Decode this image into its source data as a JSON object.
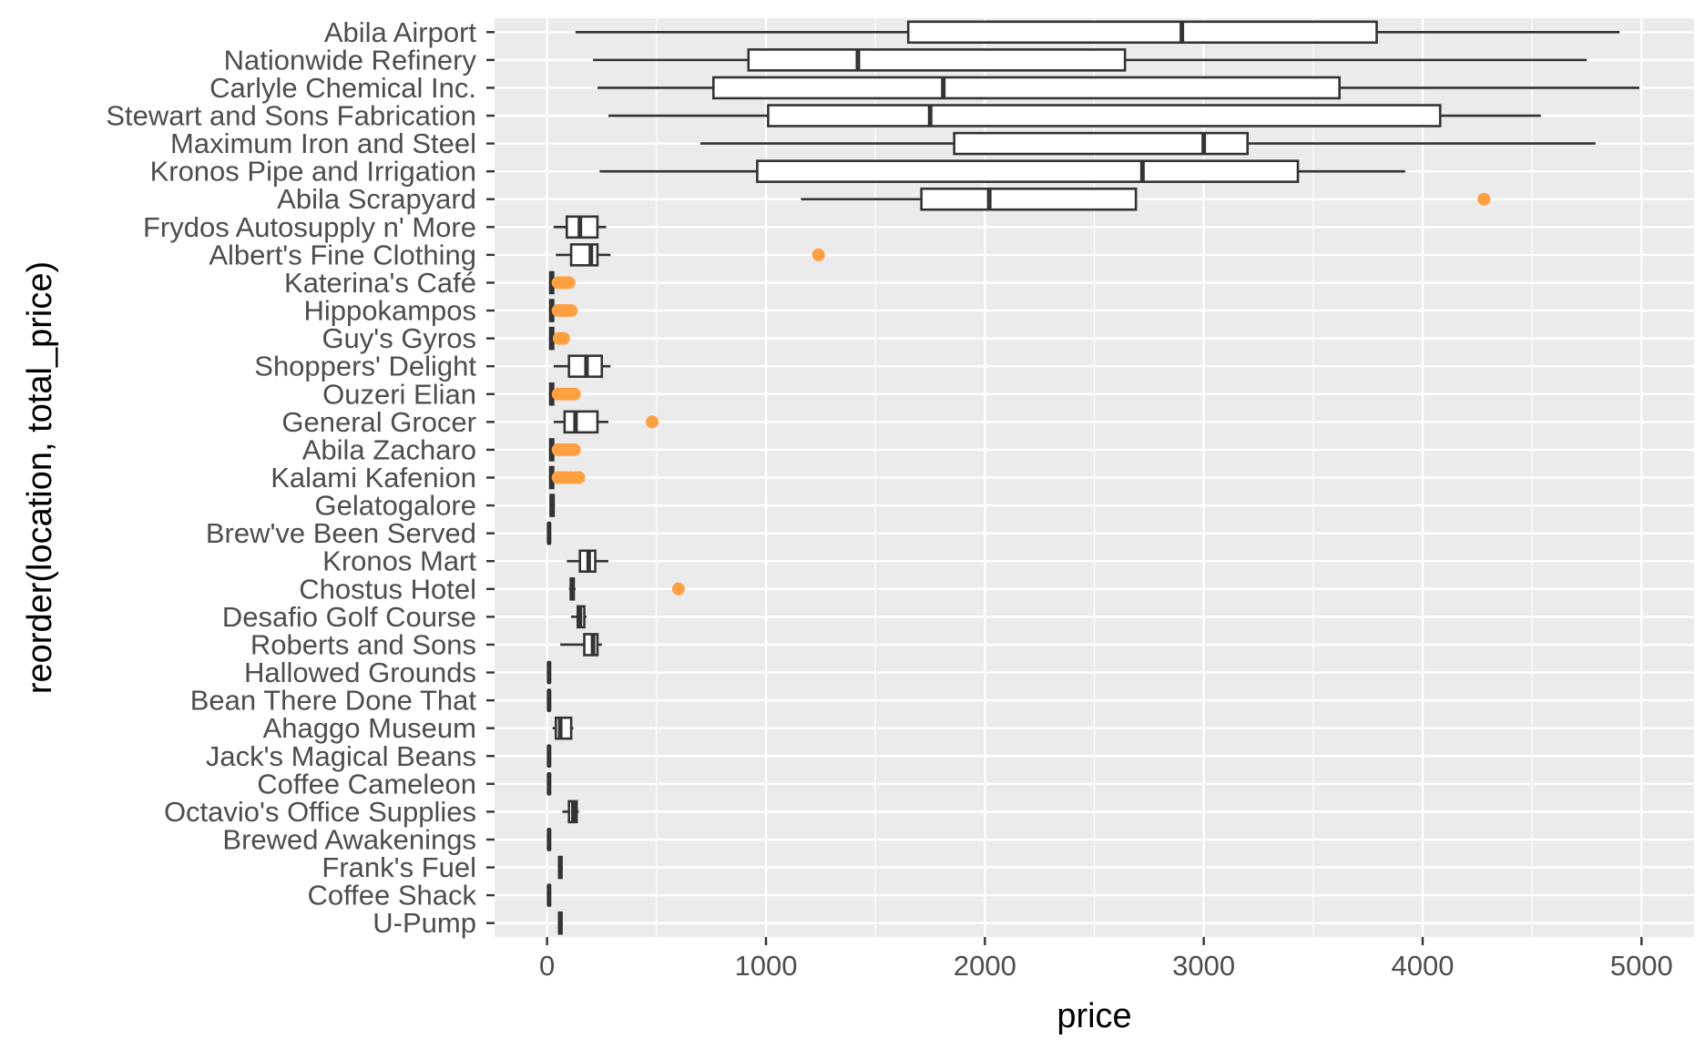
{
  "chart_data": {
    "type": "boxplot",
    "orientation": "horizontal",
    "xlabel": "price",
    "ylabel": "reorder(location, total_price)",
    "xlim": [
      -240,
      5240
    ],
    "xticks": [
      0,
      1000,
      2000,
      3000,
      4000,
      5000
    ],
    "x_minor_ticks": [
      500,
      1500,
      2500,
      3500,
      4500
    ],
    "grid": true,
    "background": "#ebebeb",
    "grid_color": "#ffffff",
    "box_fill": "#ffffff",
    "box_stroke": "#333333",
    "outlier_color": "#ffa040",
    "categories": [
      {
        "label": "Abila Airport",
        "min": 130,
        "q1": 1650,
        "median": 2900,
        "q3": 3790,
        "max": 4900,
        "outliers": []
      },
      {
        "label": "Nationwide Refinery",
        "min": 210,
        "q1": 920,
        "median": 1420,
        "q3": 2640,
        "max": 4750,
        "outliers": []
      },
      {
        "label": "Carlyle Chemical Inc.",
        "min": 230,
        "q1": 760,
        "median": 1810,
        "q3": 3620,
        "max": 4990,
        "outliers": []
      },
      {
        "label": "Stewart and Sons Fabrication",
        "min": 280,
        "q1": 1010,
        "median": 1750,
        "q3": 4080,
        "max": 4540,
        "outliers": []
      },
      {
        "label": "Maximum Iron and Steel",
        "min": 700,
        "q1": 1860,
        "median": 3000,
        "q3": 3200,
        "max": 4790,
        "outliers": []
      },
      {
        "label": "Kronos Pipe and Irrigation",
        "min": 240,
        "q1": 960,
        "median": 2720,
        "q3": 3430,
        "max": 3920,
        "outliers": []
      },
      {
        "label": "Abila Scrapyard",
        "min": 1160,
        "q1": 1710,
        "median": 2020,
        "q3": 2690,
        "max": 2690,
        "outliers": [
          4280
        ]
      },
      {
        "label": "Frydos Autosupply n' More",
        "min": 30,
        "q1": 90,
        "median": 150,
        "q3": 230,
        "max": 270,
        "outliers": []
      },
      {
        "label": "Albert's Fine Clothing",
        "min": 40,
        "q1": 110,
        "median": 200,
        "q3": 230,
        "max": 290,
        "outliers": [
          1240
        ]
      },
      {
        "label": "Katerina's Café",
        "min": 8,
        "q1": 14,
        "median": 20,
        "q3": 28,
        "max": 38,
        "outliers": [
          50,
          60,
          70,
          80,
          90,
          100
        ]
      },
      {
        "label": "Hippokampos",
        "min": 8,
        "q1": 14,
        "median": 20,
        "q3": 28,
        "max": 38,
        "outliers": [
          50,
          65,
          80,
          95,
          110
        ]
      },
      {
        "label": "Guy's Gyros",
        "min": 8,
        "q1": 14,
        "median": 20,
        "q3": 28,
        "max": 38,
        "outliers": [
          55,
          75
        ]
      },
      {
        "label": "Shoppers' Delight",
        "min": 30,
        "q1": 100,
        "median": 180,
        "q3": 250,
        "max": 290,
        "outliers": []
      },
      {
        "label": "Ouzeri Elian",
        "min": 8,
        "q1": 14,
        "median": 20,
        "q3": 28,
        "max": 38,
        "outliers": [
          50,
          65,
          80,
          95,
          110,
          125
        ]
      },
      {
        "label": "General Grocer",
        "min": 30,
        "q1": 80,
        "median": 130,
        "q3": 230,
        "max": 280,
        "outliers": [
          480
        ]
      },
      {
        "label": "Abila Zacharo",
        "min": 8,
        "q1": 14,
        "median": 20,
        "q3": 28,
        "max": 38,
        "outliers": [
          50,
          65,
          80,
          95,
          110,
          125
        ]
      },
      {
        "label": "Kalami Kafenion",
        "min": 8,
        "q1": 14,
        "median": 20,
        "q3": 28,
        "max": 38,
        "outliers": [
          50,
          70,
          90,
          110,
          130,
          145
        ]
      },
      {
        "label": "Gelatogalore",
        "min": 12,
        "q1": 16,
        "median": 22,
        "q3": 30,
        "max": 36,
        "outliers": []
      },
      {
        "label": "Brew've Been Served",
        "min": 4,
        "q1": 6,
        "median": 9,
        "q3": 12,
        "max": 15,
        "outliers": []
      },
      {
        "label": "Kronos Mart",
        "min": 90,
        "q1": 150,
        "median": 190,
        "q3": 220,
        "max": 280,
        "outliers": []
      },
      {
        "label": "Chostus Hotel",
        "min": 100,
        "q1": 108,
        "median": 115,
        "q3": 122,
        "max": 130,
        "outliers": [
          600
        ]
      },
      {
        "label": "Desafio Golf Course",
        "min": 110,
        "q1": 140,
        "median": 150,
        "q3": 170,
        "max": 180,
        "outliers": []
      },
      {
        "label": "Roberts and Sons",
        "min": 60,
        "q1": 170,
        "median": 210,
        "q3": 230,
        "max": 250,
        "outliers": []
      },
      {
        "label": "Hallowed Grounds",
        "min": 4,
        "q1": 6,
        "median": 9,
        "q3": 12,
        "max": 15,
        "outliers": []
      },
      {
        "label": "Bean There Done That",
        "min": 4,
        "q1": 6,
        "median": 9,
        "q3": 12,
        "max": 15,
        "outliers": []
      },
      {
        "label": "Ahaggo Museum",
        "min": 25,
        "q1": 40,
        "median": 60,
        "q3": 110,
        "max": 120,
        "outliers": []
      },
      {
        "label": "Jack's Magical Beans",
        "min": 4,
        "q1": 6,
        "median": 9,
        "q3": 12,
        "max": 15,
        "outliers": []
      },
      {
        "label": "Coffee Cameleon",
        "min": 4,
        "q1": 6,
        "median": 9,
        "q3": 12,
        "max": 15,
        "outliers": []
      },
      {
        "label": "Octavio's Office Supplies",
        "min": 70,
        "q1": 100,
        "median": 120,
        "q3": 135,
        "max": 145,
        "outliers": []
      },
      {
        "label": "Brewed Awakenings",
        "min": 4,
        "q1": 6,
        "median": 9,
        "q3": 12,
        "max": 15,
        "outliers": []
      },
      {
        "label": "Frank's Fuel",
        "min": 50,
        "q1": 55,
        "median": 60,
        "q3": 66,
        "max": 72,
        "outliers": []
      },
      {
        "label": "Coffee Shack",
        "min": 4,
        "q1": 6,
        "median": 9,
        "q3": 12,
        "max": 15,
        "outliers": []
      },
      {
        "label": "U-Pump",
        "min": 50,
        "q1": 55,
        "median": 60,
        "q3": 66,
        "max": 72,
        "outliers": []
      }
    ]
  }
}
